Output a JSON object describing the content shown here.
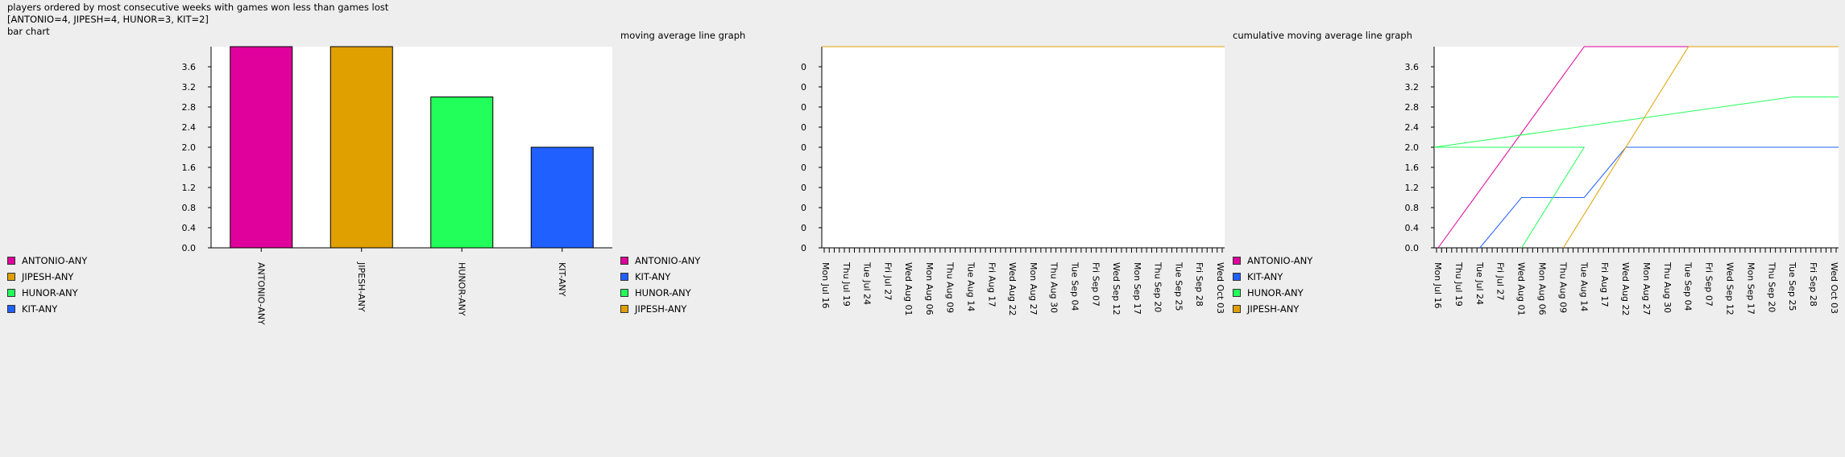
{
  "header": {
    "title": "players ordered by most consecutive weeks with games won less than games lost",
    "summary": "[ANTONIO=4, JIPESH=4, HUNOR=3, KIT=2]",
    "section1": "bar chart"
  },
  "section_titles": {
    "moving": "moving average line graph",
    "cumulative": "cumulative moving average line graph"
  },
  "colors": {
    "ANTONIO-ANY": "#e0009c",
    "JIPESH-ANY": "#e0a000",
    "HUNOR-ANY": "#22ff5a",
    "KIT-ANY": "#2060ff"
  },
  "legends": {
    "bar": [
      "ANTONIO-ANY",
      "JIPESH-ANY",
      "HUNOR-ANY",
      "KIT-ANY"
    ],
    "moving": [
      "ANTONIO-ANY",
      "KIT-ANY",
      "HUNOR-ANY",
      "JIPESH-ANY"
    ],
    "cumulative": [
      "ANTONIO-ANY",
      "KIT-ANY",
      "HUNOR-ANY",
      "JIPESH-ANY"
    ]
  },
  "chart_data": [
    {
      "type": "bar",
      "categories": [
        "ANTONIO-ANY",
        "JIPESH-ANY",
        "HUNOR-ANY",
        "KIT-ANY"
      ],
      "values": [
        4,
        4,
        3,
        2
      ],
      "ylim": [
        0,
        4
      ],
      "yticks": [
        "0.0",
        "0.4",
        "0.8",
        "1.2",
        "1.6",
        "2.0",
        "2.4",
        "2.8",
        "3.2",
        "3.6"
      ]
    },
    {
      "type": "line",
      "x_labels": [
        "Mon Jul 16",
        "Thu Jul 19",
        "Tue Jul 24",
        "Fri Jul 27",
        "Wed Aug 01",
        "Mon Aug 06",
        "Thu Aug 09",
        "Tue Aug 14",
        "Fri Aug 17",
        "Wed Aug 22",
        "Mon Aug 27",
        "Thu Aug 30",
        "Tue Sep 04",
        "Fri Sep 07",
        "Wed Sep 12",
        "Mon Sep 17",
        "Thu Sep 20",
        "Tue Sep 25",
        "Fri Sep 28",
        "Wed Oct 03"
      ],
      "yticks": [
        "0",
        "0",
        "0",
        "0",
        "0",
        "0",
        "0",
        "0",
        "0",
        "0"
      ],
      "series": [
        {
          "name": "ANTONIO-ANY",
          "values": [
            0,
            0
          ]
        },
        {
          "name": "KIT-ANY",
          "values": [
            0,
            0
          ]
        },
        {
          "name": "HUNOR-ANY",
          "values": [
            0,
            0
          ]
        },
        {
          "name": "JIPESH-ANY",
          "values": [
            0,
            0
          ]
        }
      ]
    },
    {
      "type": "line",
      "x_labels": [
        "Mon Jul 16",
        "Thu Jul 19",
        "Tue Jul 24",
        "Fri Jul 27",
        "Wed Aug 01",
        "Mon Aug 06",
        "Thu Aug 09",
        "Tue Aug 14",
        "Fri Aug 17",
        "Wed Aug 22",
        "Mon Aug 27",
        "Thu Aug 30",
        "Tue Sep 04",
        "Fri Sep 07",
        "Wed Sep 12",
        "Mon Sep 17",
        "Thu Sep 20",
        "Tue Sep 25",
        "Fri Sep 28",
        "Wed Oct 03"
      ],
      "ylim": [
        0,
        4
      ],
      "yticks": [
        "0.0",
        "0.4",
        "0.8",
        "1.2",
        "1.6",
        "2.0",
        "2.4",
        "2.8",
        "3.2",
        "3.6"
      ],
      "series": [
        {
          "name": "ANTONIO-ANY",
          "points": [
            [
              "Mon Jul 16",
              0
            ],
            [
              "Tue Aug 14",
              4
            ],
            [
              "Tue Sep 04",
              4
            ],
            [
              "Wed Oct 03",
              4
            ]
          ]
        },
        {
          "name": "KIT-ANY",
          "points": [
            [
              "Tue Jul 24",
              0
            ],
            [
              "Wed Aug 01",
              1
            ],
            [
              "Tue Aug 14",
              1
            ],
            [
              "Wed Aug 22",
              2
            ],
            [
              "Wed Oct 03",
              2
            ]
          ]
        },
        {
          "name": "HUNOR-ANY",
          "points": [
            [
              "Wed Aug 01",
              0
            ],
            [
              "Tue Aug 14",
              2
            ],
            [
              "Tue Sep 20",
              2
            ],
            [
              "Tue Sep 25",
              3
            ],
            [
              "Wed Oct 03",
              3
            ]
          ]
        },
        {
          "name": "JIPESH-ANY",
          "points": [
            [
              "Thu Aug 09",
              0
            ],
            [
              "Tue Sep 04",
              4
            ],
            [
              "Wed Oct 03",
              4
            ]
          ]
        }
      ]
    }
  ]
}
